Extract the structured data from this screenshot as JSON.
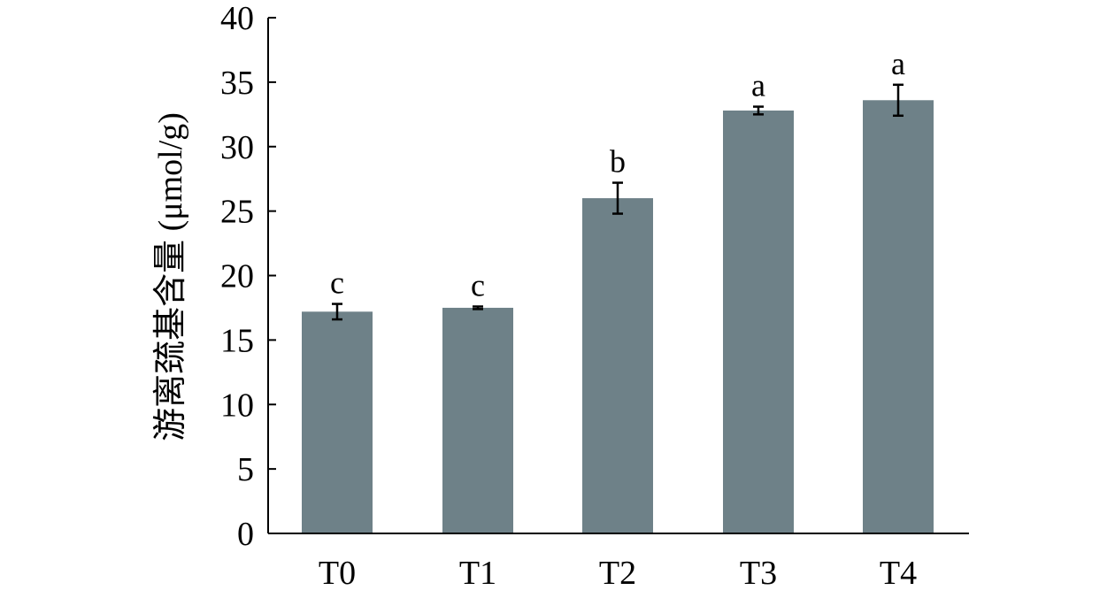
{
  "chart_data": {
    "type": "bar",
    "title": "",
    "xlabel": "",
    "ylabel": "游离巯基含量 (μmol/g)",
    "ylim": [
      0,
      40
    ],
    "y_ticks": [
      "0",
      "5",
      "10",
      "15",
      "20",
      "25",
      "30",
      "35",
      "40"
    ],
    "categories": [
      "T0",
      "T1",
      "T2",
      "T3",
      "T4"
    ],
    "values": [
      17.2,
      17.5,
      26.0,
      32.8,
      33.6
    ],
    "errors": [
      0.6,
      0.1,
      1.2,
      0.3,
      1.2
    ],
    "significance": [
      "c",
      "c",
      "b",
      "a",
      "a"
    ],
    "bar_color": "#6e8188",
    "grid": false
  }
}
